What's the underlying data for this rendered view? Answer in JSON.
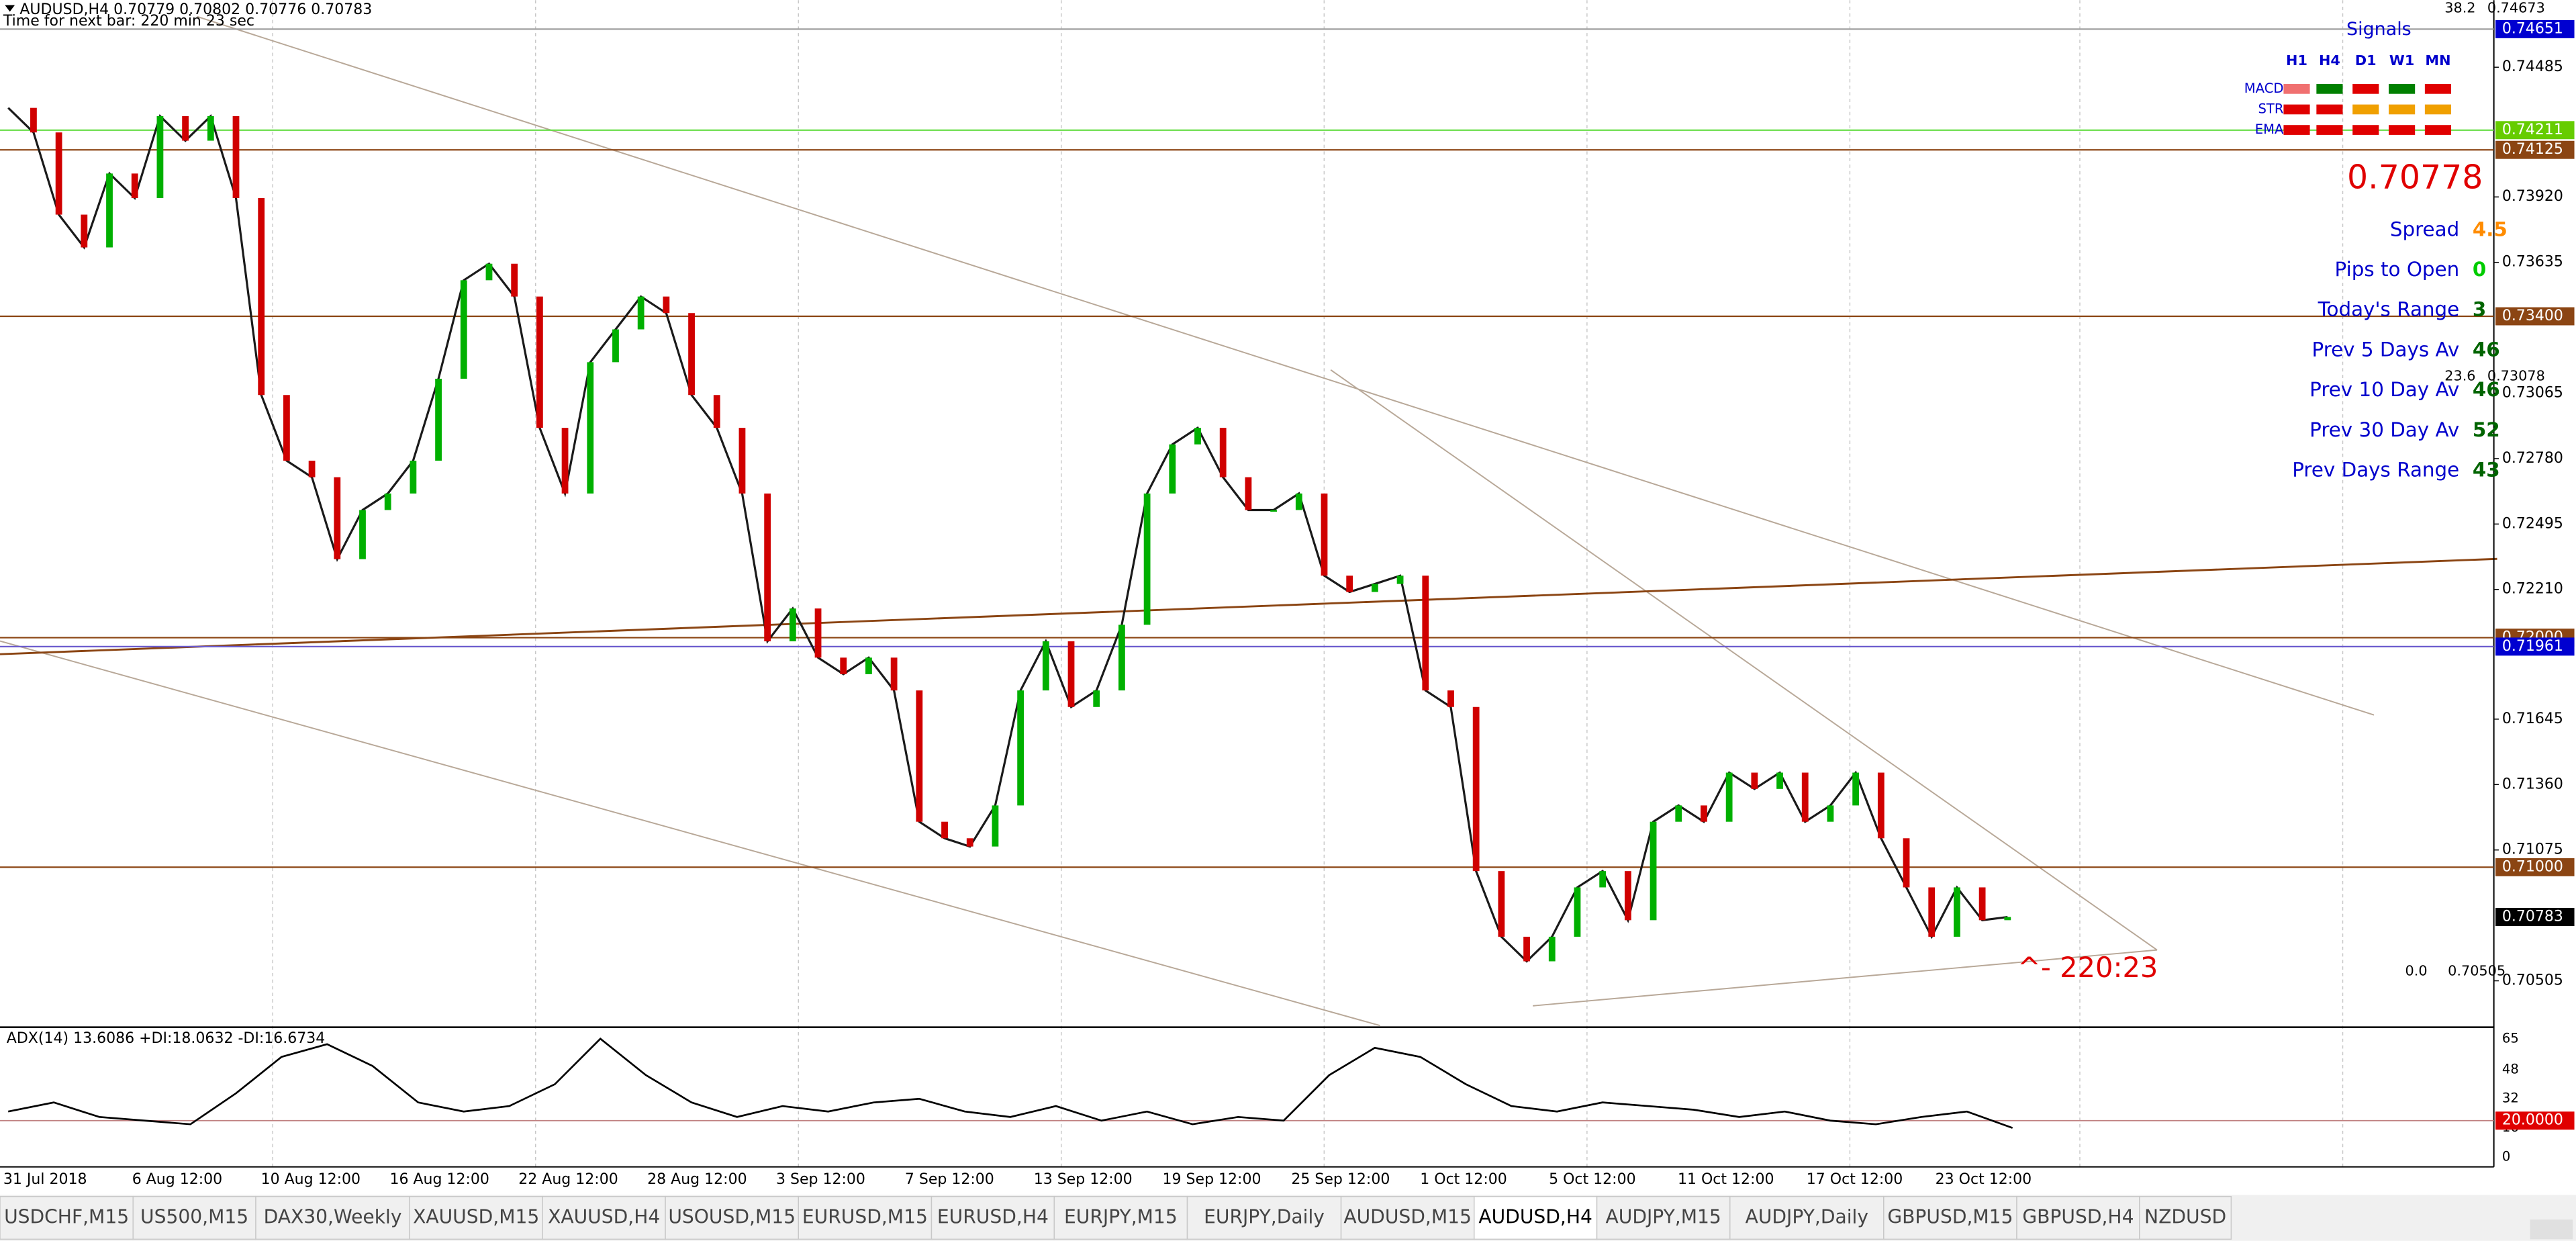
{
  "header": {
    "quote": "AUDUSD,H4  0.70779 0.70802 0.70776 0.70783",
    "timer": "Time for next bar: 220 min 23 sec"
  },
  "chart": {
    "ylim": [
      0.7031,
      0.7472
    ],
    "price_ticks": [
      {
        "value": 0.74485,
        "label": "0.74485"
      },
      {
        "value": 0.7392,
        "label": "0.73920"
      },
      {
        "value": 0.73635,
        "label": "0.73635"
      },
      {
        "value": 0.73065,
        "label": "0.73065"
      },
      {
        "value": 0.7278,
        "label": "0.72780"
      },
      {
        "value": 0.72495,
        "label": "0.72495"
      },
      {
        "value": 0.7221,
        "label": "0.72210"
      },
      {
        "value": 0.71645,
        "label": "0.71645"
      },
      {
        "value": 0.7136,
        "label": "0.71360"
      },
      {
        "value": 0.71075,
        "label": "0.71075"
      },
      {
        "value": 0.70505,
        "label": "0.70505"
      }
    ],
    "levels": [
      {
        "value": 0.74651,
        "label": "0.74651",
        "bg": "#0000d0",
        "line": "#a0a0a0"
      },
      {
        "value": 0.74211,
        "label": "0.74211",
        "bg": "#66cc00",
        "line": "#66dd44"
      },
      {
        "value": 0.74125,
        "label": "0.74125",
        "bg": "#8b4513",
        "line": "#8b4513"
      },
      {
        "value": 0.734,
        "label": "0.73400",
        "bg": "#8b4513",
        "line": "#8b4513"
      },
      {
        "value": 0.72,
        "label": "0.72000",
        "bg": "#8b4513",
        "line": "#8b4513"
      },
      {
        "value": 0.71961,
        "label": "0.71961",
        "bg": "#0000d0",
        "line": "#6a5acd"
      },
      {
        "value": 0.71,
        "label": "0.71000",
        "bg": "#8b4513",
        "line": "#8b4513"
      },
      {
        "value": 0.70783,
        "label": "0.70783",
        "bg": "#000000"
      }
    ],
    "fib": [
      {
        "level": "38.2",
        "price": "0.74673"
      },
      {
        "level": "23.6",
        "price": "0.73078"
      },
      {
        "level": "0.0",
        "price": "0.70505"
      }
    ],
    "closes": [
      0.74308,
      0.74201,
      0.73843,
      0.737,
      0.74022,
      0.73915,
      0.74272,
      0.74165,
      0.74272,
      0.73915,
      0.73057,
      0.72771,
      0.72699,
      0.72342,
      0.72556,
      0.72628,
      0.72771,
      0.73128,
      0.73557,
      0.73629,
      0.73486,
      0.72914,
      0.72628,
      0.732,
      0.73343,
      0.73486,
      0.73414,
      0.73057,
      0.72914,
      0.72628,
      0.71984,
      0.72127,
      0.71913,
      0.71841,
      0.71913,
      0.7177,
      0.71198,
      0.71126,
      0.7109,
      0.71269,
      0.7177,
      0.71984,
      0.71698,
      0.7177,
      0.72056,
      0.72628,
      0.72842,
      0.72914,
      0.72699,
      0.72556,
      0.72556,
      0.72628,
      0.7227,
      0.72199,
      0.72234,
      0.7227,
      0.7177,
      0.71698,
      0.70983,
      0.70697,
      0.7059,
      0.70697,
      0.70912,
      0.70983,
      0.70769,
      0.71198,
      0.71269,
      0.71198,
      0.71412,
      0.71341,
      0.71412,
      0.71198,
      0.71269,
      0.71412,
      0.71126,
      0.70912,
      0.70697,
      0.70912,
      0.70769,
      0.70783
    ],
    "annotation": "^- 220:23",
    "time_labels": [
      "31 Jul 2018",
      "6 Aug 12:00",
      "10 Aug 12:00",
      "16 Aug 12:00",
      "22 Aug 12:00",
      "28 Aug 12:00",
      "3 Sep 12:00",
      "7 Sep 12:00",
      "13 Sep 12:00",
      "19 Sep 12:00",
      "25 Sep 12:00",
      "1 Oct 12:00",
      "5 Oct 12:00",
      "11 Oct 12:00",
      "17 Oct 12:00",
      "23 Oct 12:00"
    ],
    "adx": {
      "label": "ADX(14) 13.6086 +DI:18.0632 -DI:16.6734",
      "ylim": [
        0,
        65
      ],
      "ticks": [
        65,
        48,
        32,
        16,
        0
      ],
      "level": {
        "value": 20,
        "label": "20.0000"
      },
      "values": [
        25,
        30,
        22,
        20,
        18,
        35,
        55,
        62,
        50,
        30,
        25,
        28,
        40,
        65,
        45,
        30,
        22,
        28,
        25,
        30,
        32,
        25,
        22,
        28,
        20,
        25,
        18,
        22,
        20,
        45,
        60,
        55,
        40,
        28,
        25,
        30,
        28,
        26,
        22,
        25,
        20,
        18,
        22,
        25,
        16
      ]
    }
  },
  "panel": {
    "title": "Signals",
    "timeframes": [
      "H1",
      "H4",
      "D1",
      "W1",
      "MN"
    ],
    "rows": [
      {
        "name": "MACD",
        "cells": [
          "#f07070",
          "#008000",
          "#e00000",
          "#008000",
          "#e00000"
        ]
      },
      {
        "name": "STR",
        "cells": [
          "#e00000",
          "#e00000",
          "#f0a000",
          "#f0a000",
          "#f0a000"
        ]
      },
      {
        "name": "EMA",
        "cells": [
          "#e00000",
          "#e00000",
          "#e00000",
          "#e00000",
          "#e00000"
        ]
      }
    ],
    "price": "0.70778",
    "stats": [
      {
        "label": "Spread",
        "value": "4.5",
        "color": "#ff8c00"
      },
      {
        "label": "Pips to Open",
        "value": "0",
        "color": "#00cc00"
      },
      {
        "label": "Today's Range",
        "value": "3",
        "color": "#006400"
      },
      {
        "label": "Prev 5 Days Av",
        "value": "46",
        "color": "#006400"
      },
      {
        "label": "Prev 10 Day Av",
        "value": "46",
        "color": "#006400"
      },
      {
        "label": "Prev 30 Day Av",
        "value": "52",
        "color": "#006400"
      },
      {
        "label": "Prev Days Range",
        "value": "43",
        "color": "#006400"
      }
    ]
  },
  "tabs": [
    "USDCHF,M15",
    "US500,M15",
    "DAX30,Weekly",
    "XAUUSD,M15",
    "XAUUSD,H4",
    "USOUSD,M15",
    "EURUSD,M15",
    "EURUSD,H4",
    "EURJPY,M15",
    "EURJPY,Daily",
    "AUDUSD,M15",
    "AUDUSD,H4",
    "AUDJPY,M15",
    "AUDJPY,Daily",
    "GBPUSD,M15",
    "GBPUSD,H4",
    "NZDUSD"
  ],
  "active_tab": 11
}
